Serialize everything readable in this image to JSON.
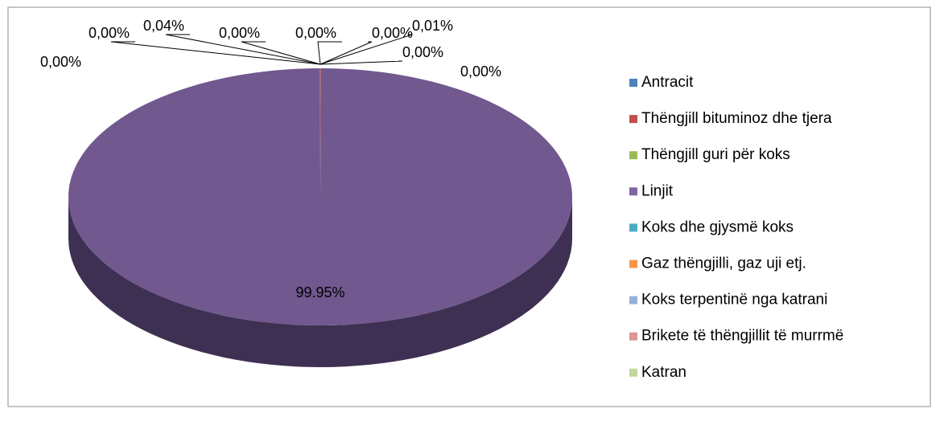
{
  "chart_data": {
    "type": "pie",
    "categories": [
      "Antracit",
      "Thëngjill bituminoz dhe tjera",
      "Thëngjill guri për koks",
      "Linjit",
      "Koks dhe gjysmë koks",
      "Gaz thëngjilli, gaz uji etj.",
      "Koks terpentinë nga katrani",
      "Brikete të thëngjillit të murrmë",
      "Katran",
      null
    ],
    "values": [
      0,
      0.04,
      0,
      99.95,
      0,
      0,
      0.01,
      0,
      0,
      0
    ],
    "value_labels": [
      "0,00%",
      "0,04%",
      "0,00%",
      "99.95%",
      "0,00%",
      "0,00%",
      "0,01%",
      "0,00%",
      "0,00%",
      "0,00%"
    ],
    "colors": [
      "#4f81bd",
      "#c0504d",
      "#9bbb59",
      "#8064a2",
      "#4bacc6",
      "#f79646",
      "#95b3d7",
      "#d99694",
      "#c3d69b",
      "#b2a1c7"
    ],
    "legend": "right",
    "style": "3d"
  }
}
